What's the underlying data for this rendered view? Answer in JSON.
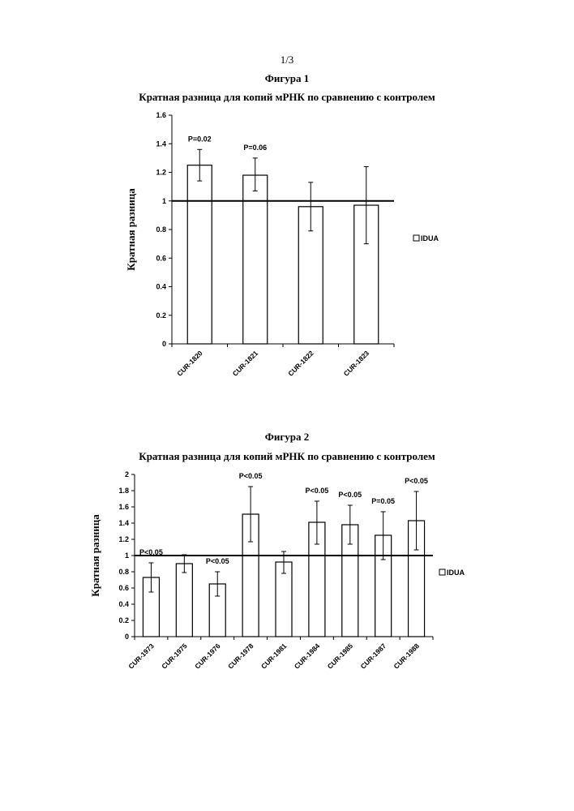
{
  "page": {
    "number": "1/3"
  },
  "chart_data": [
    {
      "type": "bar",
      "figure_label": "Фигура 1",
      "title": "Кратная разница для копий мРНК по сравнению с контролем",
      "xlabel": "",
      "ylabel": "Кратная разница",
      "ylim": [
        0,
        1.6
      ],
      "yticks": [
        "0",
        "0.2",
        "0.4",
        "0.6",
        "0.8",
        "1",
        "1.2",
        "1.4",
        "1.6"
      ],
      "reference_line": 1.0,
      "grid": false,
      "legend_placement": "right",
      "categories": [
        "CUR-1820",
        "CUR-1821",
        "CUR-1822",
        "CUR-1823"
      ],
      "series": [
        {
          "name": "IDUA",
          "values": [
            1.25,
            1.18,
            0.96,
            0.97
          ],
          "error_low": [
            1.14,
            1.07,
            0.79,
            0.7
          ],
          "error_high": [
            1.36,
            1.3,
            1.13,
            1.24
          ]
        }
      ],
      "annotations": [
        "P=0.02",
        "P=0.06",
        "",
        ""
      ]
    },
    {
      "type": "bar",
      "figure_label": "Фигура 2",
      "title": "Кратная разница для копий мРНК по сравнению с контролем",
      "xlabel": "",
      "ylabel": "Кратная разница",
      "ylim": [
        0,
        2
      ],
      "yticks": [
        "0",
        "0.2",
        "0.4",
        "0.6",
        "0.8",
        "1",
        "1.2",
        "1.4",
        "1.6",
        "1.8",
        "2"
      ],
      "reference_line": 1.0,
      "grid": false,
      "legend_placement": "right",
      "categories": [
        "CUR-1973",
        "CUR-1975",
        "CUR-1976",
        "CUR-1978",
        "CUR-1981",
        "CUR-1984",
        "CUR-1985",
        "CUR-1987",
        "CUR-1988"
      ],
      "series": [
        {
          "name": "IDUA",
          "values": [
            0.73,
            0.9,
            0.65,
            1.51,
            0.92,
            1.41,
            1.38,
            1.25,
            1.43
          ],
          "error_low": [
            0.55,
            0.79,
            0.5,
            1.17,
            0.78,
            1.14,
            1.14,
            0.95,
            1.07
          ],
          "error_high": [
            0.91,
            1.01,
            0.8,
            1.85,
            1.05,
            1.67,
            1.62,
            1.54,
            1.79
          ]
        }
      ],
      "annotations": [
        "P<0.05",
        "",
        "P<0.05",
        "P<0.05",
        "",
        "P<0.05",
        "P<0.05",
        "P=0.05",
        "P<0.05"
      ]
    }
  ]
}
